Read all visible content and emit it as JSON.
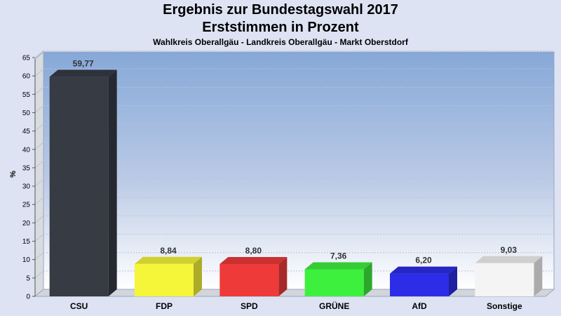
{
  "chart_data": {
    "type": "bar",
    "title": "Ergebnis zur Bundestagswahl 2017",
    "subtitle": "Erststimmen in Prozent",
    "subsubtitle": "Wahlkreis Oberallgäu - Landkreis Oberallgäu - Markt Oberstdorf",
    "ylabel": "%",
    "xlabel": "",
    "ylim": [
      0,
      65
    ],
    "yticks": [
      0,
      5,
      10,
      15,
      20,
      25,
      30,
      35,
      40,
      45,
      50,
      55,
      60,
      65
    ],
    "grid": true,
    "categories": [
      "CSU",
      "FDP",
      "SPD",
      "GRÜNE",
      "AfD",
      "Sonstige"
    ],
    "values": [
      59.77,
      8.84,
      8.8,
      7.36,
      6.2,
      9.03
    ],
    "value_labels": [
      "59,77",
      "8,84",
      "8,80",
      "7,36",
      "6,20",
      "9,03"
    ],
    "colors": [
      "#363b44",
      "#f5f53a",
      "#ef3a3a",
      "#3ef03e",
      "#2d2de8",
      "#f4f4f4"
    ]
  }
}
